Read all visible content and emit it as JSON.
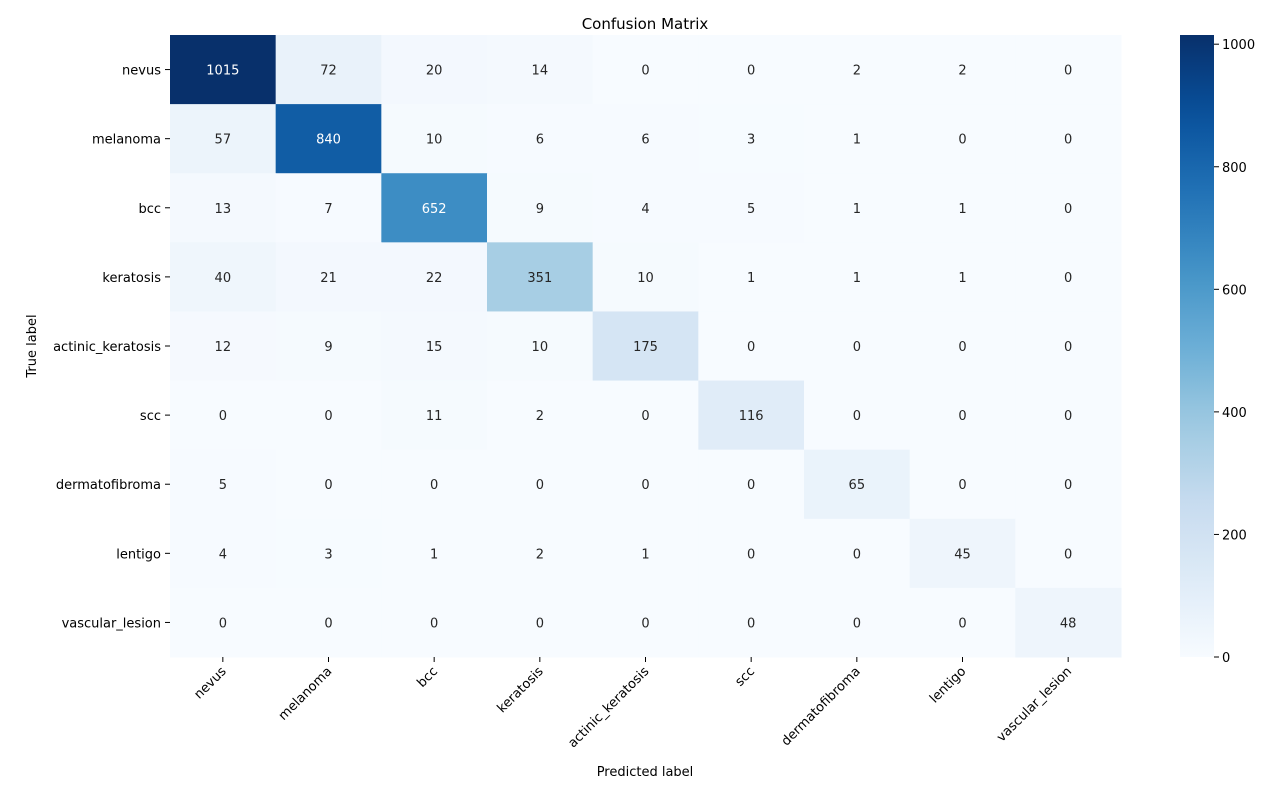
{
  "chart_data": {
    "type": "heatmap",
    "title": "Confusion Matrix",
    "xlabel": "Predicted label",
    "ylabel": "True label",
    "x_categories": [
      "nevus",
      "melanoma",
      "bcc",
      "keratosis",
      "actinic_keratosis",
      "scc",
      "dermatofibroma",
      "lentigo",
      "vascular_lesion"
    ],
    "y_categories": [
      "nevus",
      "melanoma",
      "bcc",
      "keratosis",
      "actinic_keratosis",
      "scc",
      "dermatofibroma",
      "lentigo",
      "vascular_lesion"
    ],
    "values": [
      [
        1015,
        72,
        20,
        14,
        0,
        0,
        2,
        2,
        0
      ],
      [
        57,
        840,
        10,
        6,
        6,
        3,
        1,
        0,
        0
      ],
      [
        13,
        7,
        652,
        9,
        4,
        5,
        1,
        1,
        0
      ],
      [
        40,
        21,
        22,
        351,
        10,
        1,
        1,
        1,
        0
      ],
      [
        12,
        9,
        15,
        10,
        175,
        0,
        0,
        0,
        0
      ],
      [
        0,
        0,
        11,
        2,
        0,
        116,
        0,
        0,
        0
      ],
      [
        5,
        0,
        0,
        0,
        0,
        0,
        65,
        0,
        0
      ],
      [
        4,
        3,
        1,
        2,
        1,
        0,
        0,
        45,
        0
      ],
      [
        0,
        0,
        0,
        0,
        0,
        0,
        0,
        0,
        48
      ]
    ],
    "colormap": "Blues",
    "color_low": "#f7fbff",
    "color_high": "#08306b",
    "vmin": 0,
    "vmax": 1015,
    "colorbar_ticks": [
      "0",
      "200",
      "400",
      "600",
      "800",
      "1000"
    ],
    "colorbar_tick_values": [
      0,
      200,
      400,
      600,
      800,
      1000
    ],
    "annotation_dark_color": "#262626",
    "annotation_light_color": "#ffffff",
    "grid": false,
    "colorbar_position": "right"
  }
}
